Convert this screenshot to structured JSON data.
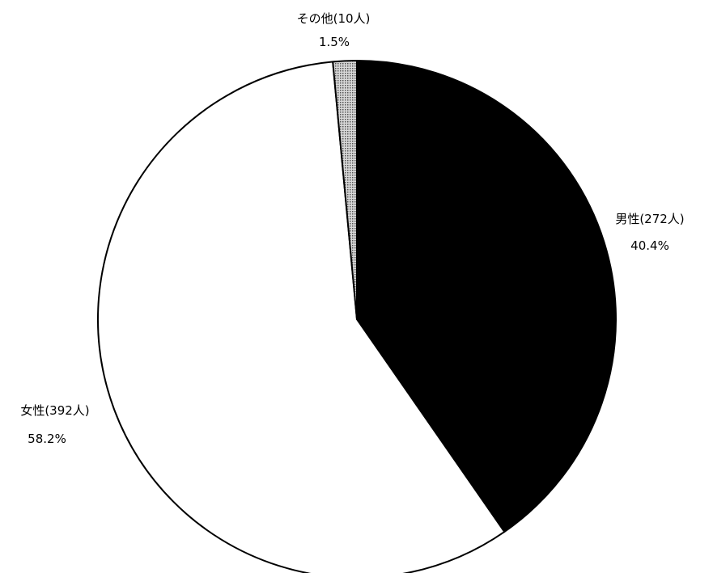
{
  "chart_data": {
    "type": "pie",
    "slices": [
      {
        "name": "男性",
        "count_label": "(272人)",
        "count": 272,
        "percent_label": "40.4%",
        "percent": 40.4,
        "fill": "#000000",
        "pattern": "solid"
      },
      {
        "name": "女性",
        "count_label": "(392人)",
        "count": 392,
        "percent_label": "58.2%",
        "percent": 58.2,
        "fill": "#ffffff",
        "pattern": "solid"
      },
      {
        "name": "その他",
        "count_label": "(10人)",
        "count": 10,
        "percent_label": "1.5%",
        "percent": 1.5,
        "fill": "#9a9a9a",
        "pattern": "dotted"
      }
    ],
    "start": "12 o'clock",
    "direction": "clockwise",
    "legend": "none",
    "edge_color": "#000000"
  }
}
